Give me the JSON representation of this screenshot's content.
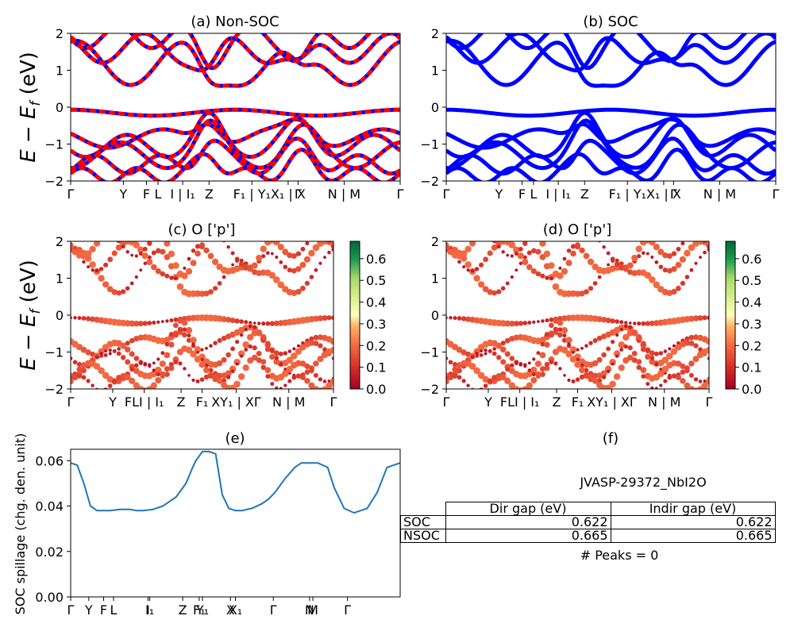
{
  "panels": {
    "a": {
      "title": "(a) Non-SOC"
    },
    "b": {
      "title": "(b) SOC"
    },
    "c": {
      "title": "(c)  O ['p']"
    },
    "d": {
      "title": "(d) O ['p']"
    },
    "e": {
      "title": "(e)"
    },
    "f": {
      "title": "(f)"
    }
  },
  "band_ylabel": "E − E_f (eV)",
  "spillage_ylabel": "SOC spillage (chg. den. unit)",
  "table": {
    "title": "JVASP-29372_NbI2O",
    "headers": [
      "Dir gap (eV)",
      "Indir gap (eV)"
    ],
    "rows": [
      {
        "label": "SOC",
        "dir": "0.622",
        "indir": "0.622"
      },
      {
        "label": "NSOC",
        "dir": "0.665",
        "indir": "0.665"
      }
    ],
    "peaks": "# Peaks = 0"
  },
  "chart_data": [
    {
      "type": "line",
      "panel": "a",
      "ylim": [
        -2,
        2
      ],
      "yticks": [
        -2,
        -1,
        0,
        1,
        2
      ],
      "xticklabels": [
        "Γ",
        "Y",
        "F",
        "L",
        "I | I₁",
        "Z",
        "F₁ | Y₁",
        "X₁ | X",
        "Γ",
        "N | M",
        "Γ"
      ],
      "series_colors": [
        "#0000ff",
        "#ff0000"
      ]
    },
    {
      "type": "line",
      "panel": "b",
      "ylim": [
        -2,
        2
      ],
      "yticks": [
        -2,
        -1,
        0,
        1,
        2
      ],
      "xticklabels": [
        "Γ",
        "Y",
        "F",
        "L",
        "I | I₁",
        "Z",
        "F₁ | Y₁",
        "X₁ | X",
        "Γ",
        "N | M",
        "Γ"
      ],
      "series_colors": [
        "#0000ff"
      ]
    },
    {
      "type": "scatter",
      "panel": "c",
      "ylim": [
        -2,
        2
      ],
      "yticks": [
        -2,
        -1,
        0,
        1,
        2
      ],
      "xticklabels": [
        "Γ",
        "Y",
        "FLI | I₁",
        "Z",
        "F₁",
        "XY₁ | XΓ",
        "N | M",
        "Γ"
      ],
      "colorbar": {
        "min": 0.0,
        "max": 0.68,
        "ticks": [
          0.0,
          0.1,
          0.2,
          0.3,
          0.4,
          0.5,
          0.6
        ],
        "cmap": "RdYlGn"
      }
    },
    {
      "type": "scatter",
      "panel": "d",
      "ylim": [
        -2,
        2
      ],
      "yticks": [
        -2,
        -1,
        0,
        1,
        2
      ],
      "xticklabels": [
        "Γ",
        "Y",
        "FLI | I₁",
        "Z",
        "F₁",
        "XY₁ | XΓ",
        "N | M",
        "Γ"
      ],
      "colorbar": {
        "min": 0.0,
        "max": 0.68,
        "ticks": [
          0.0,
          0.1,
          0.2,
          0.3,
          0.4,
          0.5,
          0.6
        ],
        "cmap": "RdYlGn"
      }
    },
    {
      "type": "line",
      "panel": "e",
      "ylabel": "SOC spillage (chg. den. unit)",
      "ylim": [
        0,
        0.065
      ],
      "yticks": [
        0.0,
        0.02,
        0.04,
        0.06
      ],
      "xticklabels": [
        "Γ",
        "Y",
        "F",
        "L",
        "I",
        "I₁",
        "Z",
        "F₁",
        "Y₁",
        "X",
        "X₁",
        "Γ",
        "N",
        "M",
        "Γ"
      ],
      "x": [
        0,
        0.02,
        0.04,
        0.06,
        0.08,
        0.1,
        0.12,
        0.15,
        0.18,
        0.2,
        0.22,
        0.25,
        0.28,
        0.3,
        0.32,
        0.35,
        0.37,
        0.38,
        0.4,
        0.42,
        0.44,
        0.46,
        0.48,
        0.5,
        0.52,
        0.55,
        0.58,
        0.6,
        0.62,
        0.65,
        0.68,
        0.7,
        0.72,
        0.75,
        0.78,
        0.8,
        0.83,
        0.86,
        0.9,
        0.93,
        0.96,
        1.0
      ],
      "y": [
        0.059,
        0.058,
        0.05,
        0.04,
        0.038,
        0.038,
        0.038,
        0.0385,
        0.0385,
        0.038,
        0.038,
        0.0385,
        0.04,
        0.042,
        0.044,
        0.05,
        0.057,
        0.06,
        0.064,
        0.064,
        0.063,
        0.045,
        0.039,
        0.038,
        0.038,
        0.039,
        0.041,
        0.043,
        0.046,
        0.052,
        0.057,
        0.059,
        0.059,
        0.059,
        0.057,
        0.048,
        0.039,
        0.037,
        0.039,
        0.046,
        0.057,
        0.059
      ]
    }
  ]
}
